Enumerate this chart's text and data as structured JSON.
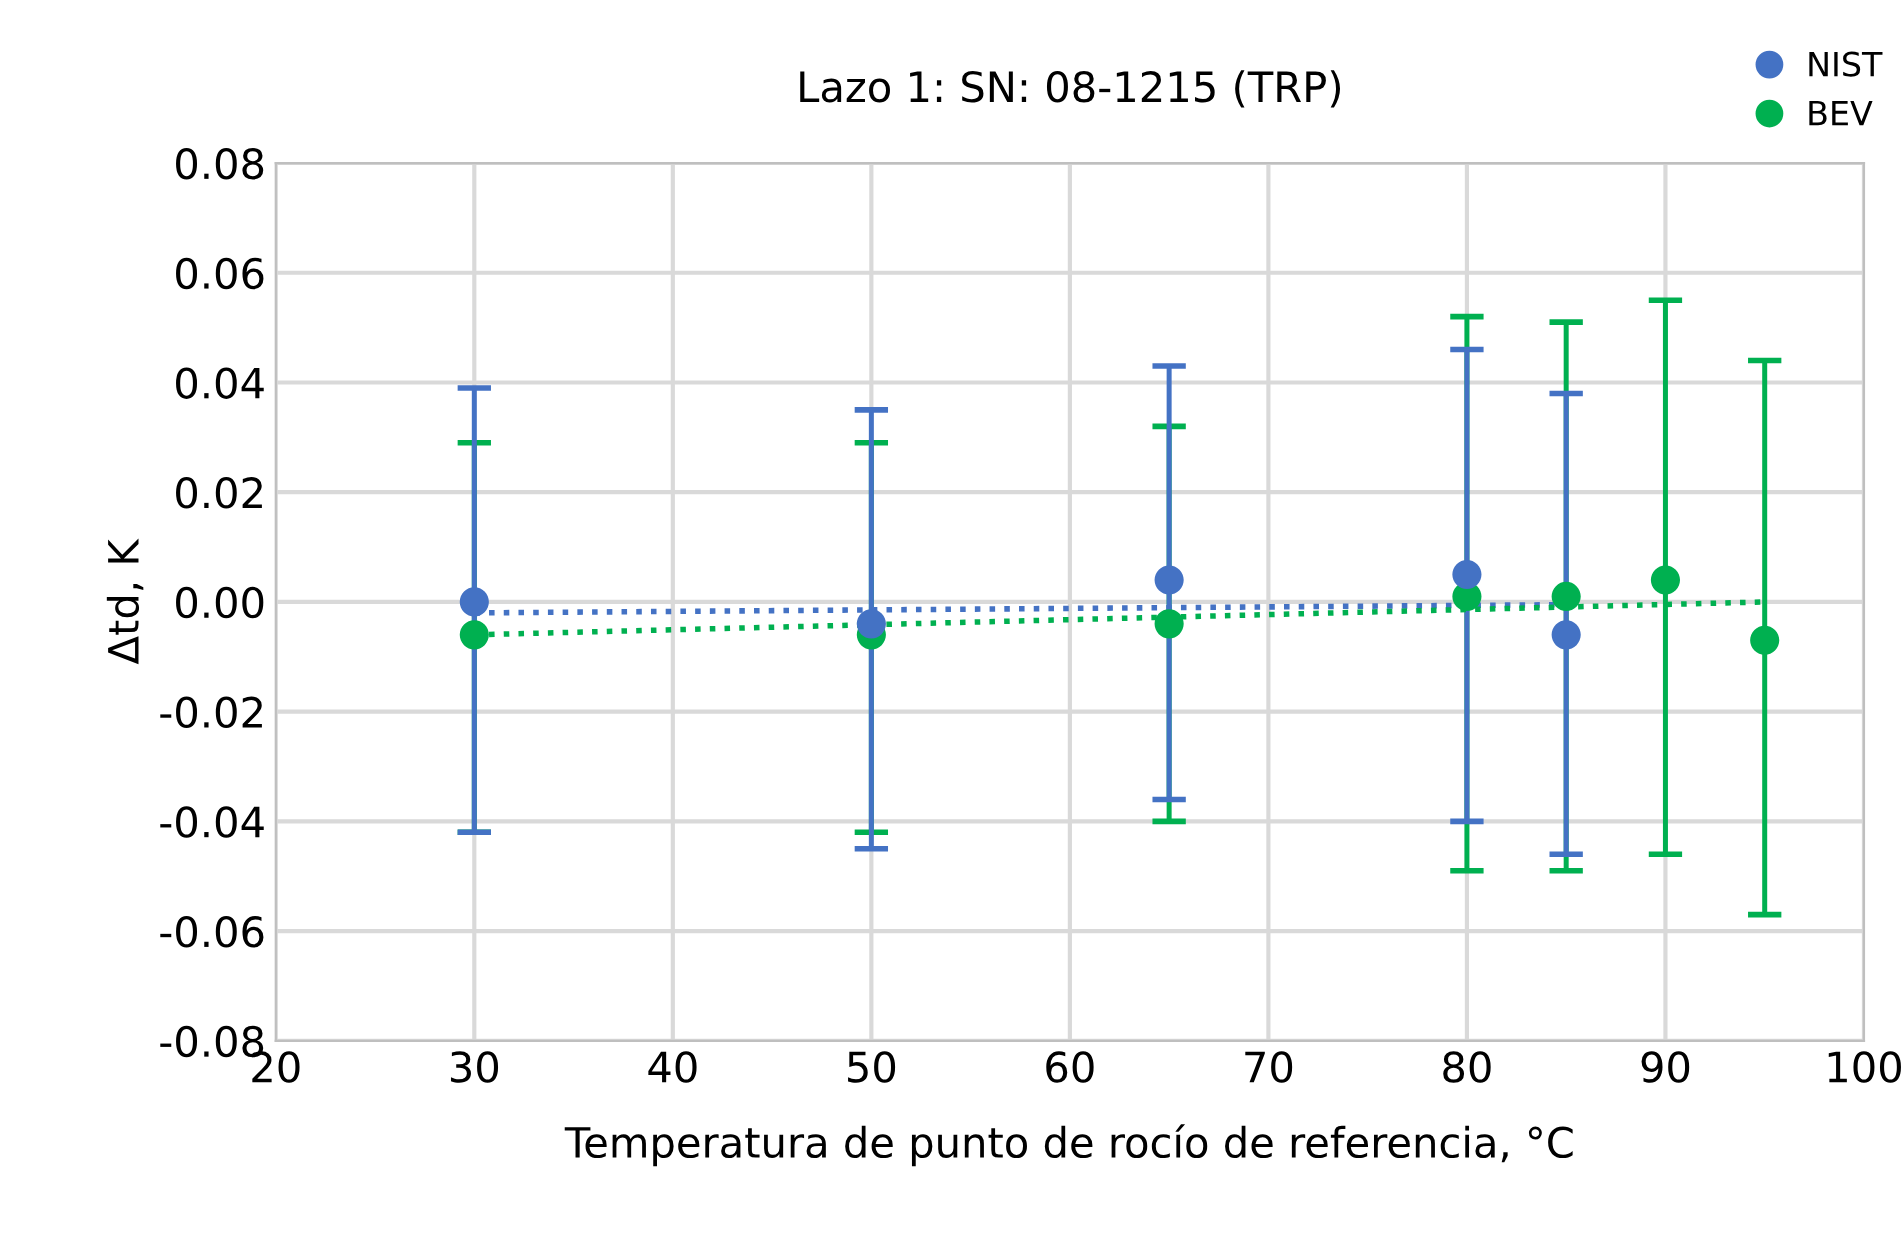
{
  "chart_data": {
    "type": "scatter",
    "title": "Lazo 1: SN: 08-1215 (TRP)",
    "xlabel": "Temperatura de punto de rocío de referencia, °C",
    "ylabel": "Δtd, K",
    "series": [
      {
        "name": "NIST",
        "color": "#4472c4",
        "marker": "circle",
        "x": [
          30,
          50,
          65,
          80,
          85
        ],
        "values": [
          0.0,
          -0.004,
          0.004,
          0.005,
          -0.006
        ],
        "errors": [
          [
            -0.042,
            0.039
          ],
          [
            -0.045,
            0.035
          ],
          [
            -0.036,
            0.043
          ],
          [
            -0.04,
            0.046
          ],
          [
            -0.046,
            0.038
          ]
        ]
      },
      {
        "name": "BEV",
        "color": "#00b050",
        "marker": "circle",
        "x": [
          30,
          50,
          65,
          80,
          85,
          90,
          95
        ],
        "values": [
          -0.006,
          -0.006,
          -0.004,
          0.001,
          0.001,
          0.004,
          -0.007
        ],
        "errors": [
          [
            -0.042,
            0.029
          ],
          [
            -0.042,
            0.029
          ],
          [
            -0.04,
            0.032
          ],
          [
            -0.049,
            0.052
          ],
          [
            -0.049,
            0.051
          ],
          [
            -0.046,
            0.055
          ],
          [
            -0.057,
            0.044
          ]
        ]
      },
      {
        "type": "line",
        "color": "#4472c4",
        "line_style": "dotted",
        "marker": "none",
        "x": [
          30,
          85
        ],
        "values": [
          -0.002,
          -0.0005
        ]
      },
      {
        "type": "line",
        "color": "#00b050",
        "line_style": "dotted",
        "marker": "none",
        "x": [
          30,
          95
        ],
        "values": [
          -0.006,
          0.0
        ]
      }
    ],
    "xlim": [
      20,
      100
    ],
    "xticks": [
      20,
      30,
      40,
      50,
      60,
      70,
      80,
      90,
      100
    ],
    "ylim": [
      -0.08,
      0.08
    ],
    "yticks": [
      {
        "value": -0.08,
        "label": "-0.08"
      },
      {
        "value": -0.06,
        "label": "-0.06"
      },
      {
        "value": -0.04,
        "label": "-0.04"
      },
      {
        "value": -0.02,
        "label": "-0.02"
      },
      {
        "value": 0,
        "label": "0.00"
      },
      {
        "value": 0.02,
        "label": "0.02"
      },
      {
        "value": 0.04,
        "label": "0.04"
      },
      {
        "value": 0.06,
        "label": "0.06"
      },
      {
        "value": 0.08,
        "label": "0.08"
      }
    ],
    "grid": true,
    "legend": "top right"
  }
}
